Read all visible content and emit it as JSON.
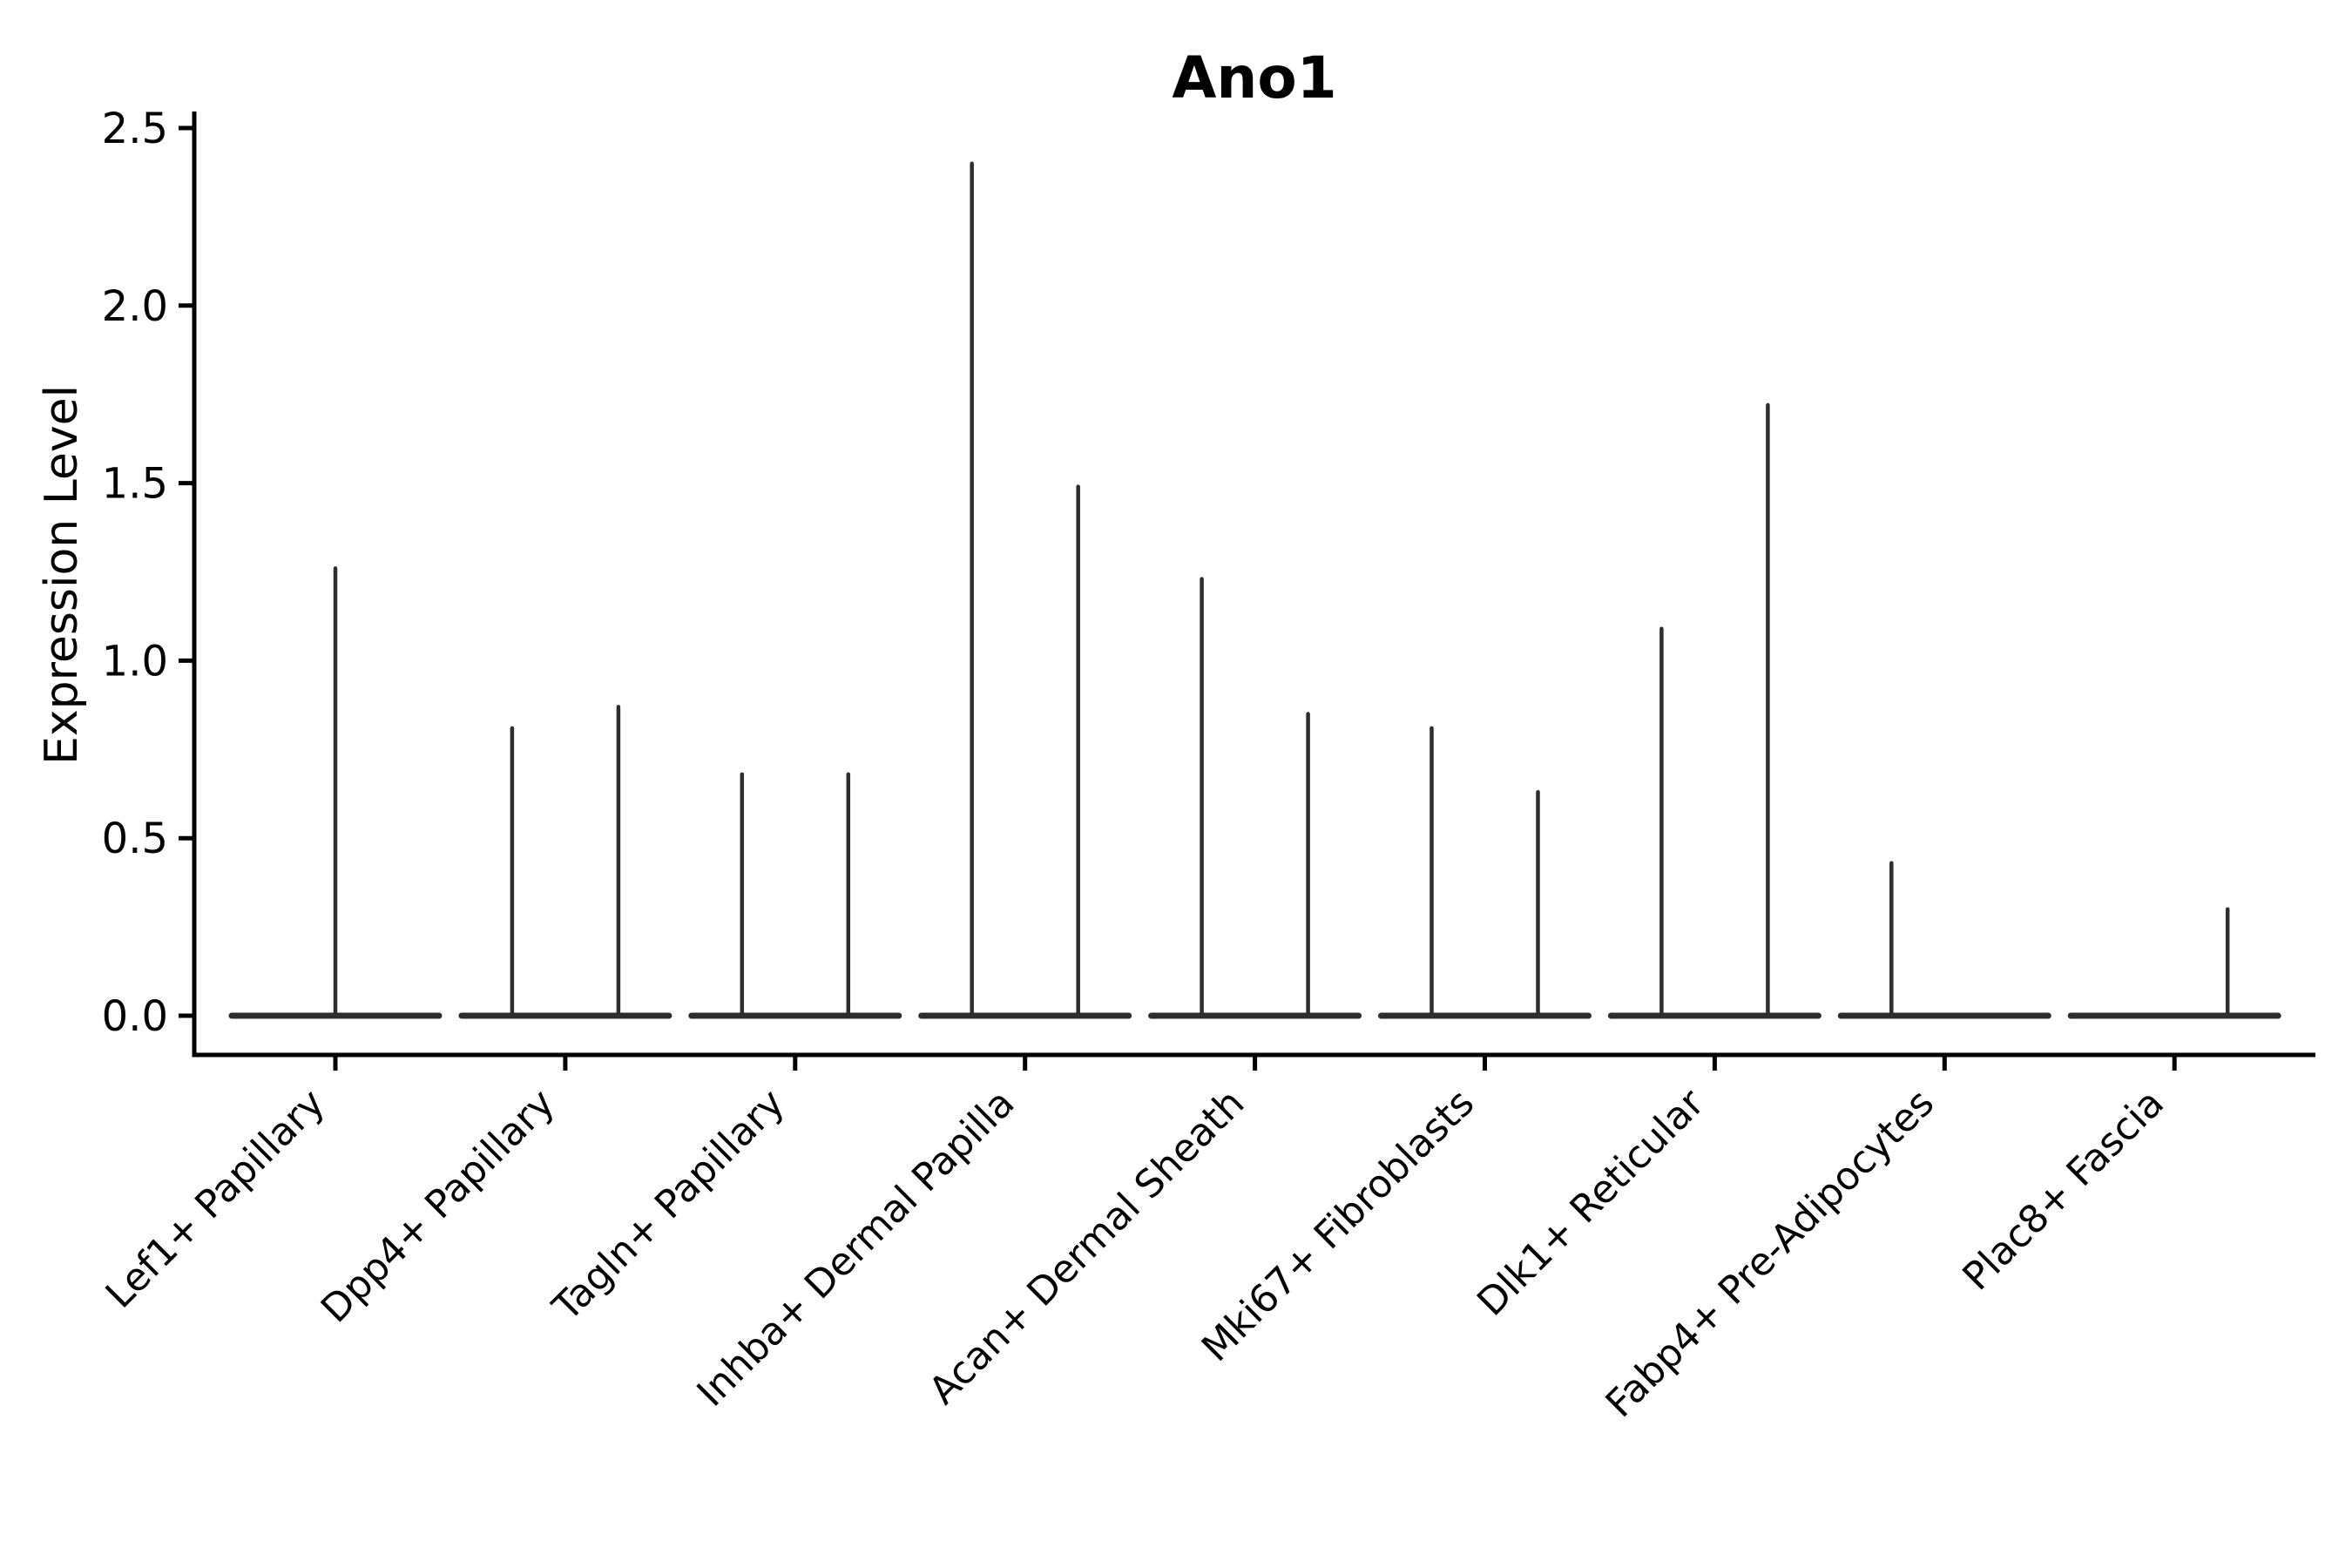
{
  "colors": {
    "violin": "#2d2d2d",
    "axis": "#000000",
    "text": "#000000",
    "background": "#ffffff"
  },
  "chart_data": {
    "type": "violin",
    "title": "Ano1",
    "xlabel": "",
    "ylabel": "Expression Level",
    "ylim": [
      0,
      2.5
    ],
    "yticks": [
      "0.0",
      "0.5",
      "1.0",
      "1.5",
      "2.0",
      "2.5"
    ],
    "grid": false,
    "legend": "none",
    "x_tick_rotation": 45,
    "categories": [
      "Lef1+ Papillary",
      "Dpp4+ Papillary",
      "Tagln+ Papillary",
      "Inhba+ Dermal Papilla",
      "Acan+ Dermal Sheath",
      "Mki67+ Fibroblasts",
      "Dlk1+ Reticular",
      "Fabp4+ Pre-Adipocytes",
      "Plac8+ Fascia"
    ],
    "violin_description": "Each category shows a flat collapsed violin body at expression 0 with thin vertical density spikes; most categories contain two side-by-side violins (left/right), whose spike maxima are listed below.",
    "violins": [
      {
        "category": "Lef1+ Papillary",
        "spikes": [
          {
            "position": "center",
            "max": 1.26
          }
        ]
      },
      {
        "category": "Dpp4+ Papillary",
        "spikes": [
          {
            "position": "left",
            "max": 0.81
          },
          {
            "position": "right",
            "max": 0.87
          }
        ]
      },
      {
        "category": "Tagln+ Papillary",
        "spikes": [
          {
            "position": "left",
            "max": 0.68
          },
          {
            "position": "right",
            "max": 0.68
          }
        ]
      },
      {
        "category": "Inhba+ Dermal Papilla",
        "spikes": [
          {
            "position": "left",
            "max": 2.4
          },
          {
            "position": "right",
            "max": 1.49
          }
        ]
      },
      {
        "category": "Acan+ Dermal Sheath",
        "spikes": [
          {
            "position": "left",
            "max": 1.23
          },
          {
            "position": "right",
            "max": 0.85
          }
        ]
      },
      {
        "category": "Mki67+ Fibroblasts",
        "spikes": [
          {
            "position": "left",
            "max": 0.81
          },
          {
            "position": "right",
            "max": 0.63
          }
        ]
      },
      {
        "category": "Dlk1+ Reticular",
        "spikes": [
          {
            "position": "left",
            "max": 1.09
          },
          {
            "position": "right",
            "max": 1.72
          }
        ]
      },
      {
        "category": "Fabp4+ Pre-Adipocytes",
        "spikes": [
          {
            "position": "left",
            "max": 0.43
          }
        ]
      },
      {
        "category": "Plac8+ Fascia",
        "spikes": [
          {
            "position": "right",
            "max": 0.3
          }
        ]
      }
    ]
  }
}
